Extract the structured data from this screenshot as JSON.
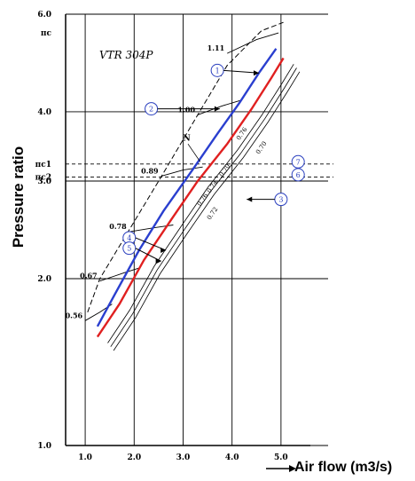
{
  "chart_data": {
    "type": "line",
    "title": "VTR 304P",
    "xlabel": "Air flow (m3/s)",
    "ylabel": "Pressure ratio",
    "xlim": [
      0.6,
      5.6
    ],
    "ylim": [
      1.0,
      6.0
    ],
    "x_scale": "linear",
    "y_scale": "log",
    "grid": true,
    "x_ticks": [
      "1.0",
      "2.0",
      "3.0",
      "4.0",
      "5.0"
    ],
    "y_ticks": [
      "1.0",
      "2.0",
      "3.0",
      "4.0",
      "6.0"
    ],
    "y_tick_values": [
      1.0,
      2.0,
      3.0,
      4.0,
      6.0
    ],
    "y_extra_labels": [
      {
        "text": "πc1",
        "value": 3.22
      },
      {
        "text": "πc2",
        "value": 3.05
      },
      {
        "text": "πc",
        "value": 5.55
      }
    ],
    "speed_lines": [
      {
        "label": "0.56",
        "points": [
          [
            1.0,
            1.68
          ],
          [
            1.3,
            1.74
          ],
          [
            1.55,
            1.8
          ]
        ]
      },
      {
        "label": "0.67",
        "points": [
          [
            1.3,
            1.98
          ],
          [
            1.8,
            2.05
          ],
          [
            2.1,
            2.09
          ]
        ]
      },
      {
        "label": "0.78",
        "points": [
          [
            1.9,
            2.43
          ],
          [
            2.4,
            2.47
          ],
          [
            2.8,
            2.5
          ]
        ]
      },
      {
        "label": "0.89",
        "points": [
          [
            2.55,
            3.06
          ],
          [
            3.0,
            3.14
          ],
          [
            3.4,
            3.18
          ]
        ]
      },
      {
        "label": "1.00",
        "points": [
          [
            3.3,
            3.95
          ],
          [
            3.8,
            4.1
          ],
          [
            4.2,
            4.2
          ]
        ]
      },
      {
        "label": "1.11",
        "points": [
          [
            3.9,
            5.1
          ],
          [
            4.5,
            5.4
          ],
          [
            4.95,
            5.55
          ]
        ]
      }
    ],
    "efficiency_labels": [
      "0.70",
      "0.74",
      "0.76",
      "0.72",
      "0.70",
      "0.76"
    ],
    "series": [
      {
        "name": "",
        "color": "#2a3fcf",
        "x": [
          1.25,
          1.6,
          2.1,
          2.6,
          3.2,
          3.7,
          4.15,
          4.55,
          4.9
        ],
        "y": [
          1.64,
          1.87,
          2.25,
          2.65,
          3.15,
          3.65,
          4.15,
          4.7,
          5.2
        ]
      },
      {
        "name": "",
        "color": "#e02020",
        "x": [
          1.25,
          1.7,
          2.2,
          2.75,
          3.3,
          3.9,
          4.4,
          4.8,
          5.05
        ],
        "y": [
          1.57,
          1.8,
          2.16,
          2.55,
          3.0,
          3.5,
          4.05,
          4.6,
          5.0
        ]
      }
    ],
    "surge_line": {
      "x": [
        1.05,
        1.3,
        1.9,
        2.55,
        3.3,
        3.9,
        4.6,
        5.05
      ],
      "y": [
        1.74,
        2.0,
        2.45,
        3.05,
        3.95,
        4.85,
        5.6,
        5.8
      ]
    },
    "callouts": [
      {
        "label": "1",
        "text": "①"
      },
      {
        "label": "2",
        "text": "②"
      },
      {
        "label": "3",
        "text": "③"
      },
      {
        "label": "4",
        "text": "④"
      },
      {
        "label": "5",
        "text": "⑤"
      },
      {
        "label": "6",
        "text": "⑥"
      },
      {
        "label": "7",
        "text": "⑦"
      }
    ],
    "annotation_N": "N"
  }
}
